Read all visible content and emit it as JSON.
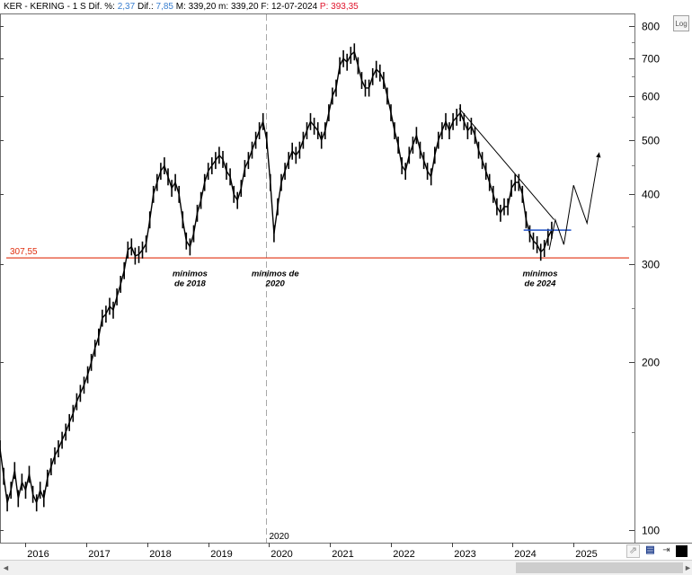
{
  "header": {
    "symbol": "KER - KERING -",
    "period": "1 S",
    "dif_pct_label": "Dif. %:",
    "dif_pct_value": "2,37",
    "dif_label": "Dif.:",
    "dif_value": "7,85",
    "max_label": "M:",
    "max_value": "339,20",
    "min_label": "m:",
    "min_value": "339,20",
    "date_label": "F:",
    "date_value": "12-07-2024",
    "price_label": "P:",
    "price_value": "393,35"
  },
  "colors": {
    "positive": "#3a7fd0",
    "price": "#e0142c",
    "support_line": "#e03010",
    "blue_level": "#1e50c8",
    "candles": "#000000"
  },
  "controls": {
    "log_label": "Log",
    "scroll_left": "◄",
    "scroll_right": "►",
    "tool_cursor_icon": "cursor-icon",
    "tool_save_icon": "save-icon",
    "tool_fit_icon": "fit-icon",
    "tool_color_icon": "color-square-icon"
  },
  "chart_data": {
    "type": "line",
    "scale": "log",
    "ylim": [
      95,
      840
    ],
    "y_ticks": [
      100,
      200,
      300,
      400,
      500,
      600,
      700,
      800
    ],
    "x_ticks": [
      {
        "label": "2016",
        "x": 2016.0
      },
      {
        "label": "2017",
        "x": 2017.0
      },
      {
        "label": "2018",
        "x": 2018.0
      },
      {
        "label": "2019",
        "x": 2019.0
      },
      {
        "label": "2020",
        "x": 2020.0
      },
      {
        "label": "2021",
        "x": 2021.0
      },
      {
        "label": "2022",
        "x": 2022.0
      },
      {
        "label": "2023",
        "x": 2023.0
      },
      {
        "label": "2024",
        "x": 2024.0
      },
      {
        "label": "2025",
        "x": 2025.0
      }
    ],
    "xlim": [
      2015.58,
      2026.0
    ],
    "vertical_marker": {
      "x": 2019.95,
      "label": "2020"
    },
    "support_level": {
      "value": 307.55,
      "label": "307,55"
    },
    "annotations": [
      {
        "lines": [
          "mínimos",
          "de 2018"
        ],
        "x": 2018.7,
        "y": 298
      },
      {
        "lines": [
          "mínimos de",
          "2020"
        ],
        "x": 2020.1,
        "y": 298
      },
      {
        "lines": [
          "mínimos",
          "de 2024"
        ],
        "x": 2024.45,
        "y": 298
      }
    ],
    "series": [
      {
        "values": [
          [
            2015.58,
            140
          ],
          [
            2015.64,
            125
          ],
          [
            2015.7,
            112
          ],
          [
            2015.76,
            118
          ],
          [
            2015.82,
            128
          ],
          [
            2015.88,
            114
          ],
          [
            2015.94,
            122
          ],
          [
            2016.0,
            118
          ],
          [
            2016.06,
            126
          ],
          [
            2016.12,
            116
          ],
          [
            2016.18,
            112
          ],
          [
            2016.24,
            118
          ],
          [
            2016.3,
            114
          ],
          [
            2016.36,
            124
          ],
          [
            2016.42,
            130
          ],
          [
            2016.48,
            136
          ],
          [
            2016.54,
            140
          ],
          [
            2016.6,
            145
          ],
          [
            2016.66,
            150
          ],
          [
            2016.72,
            156
          ],
          [
            2016.78,
            162
          ],
          [
            2016.84,
            170
          ],
          [
            2016.9,
            176
          ],
          [
            2016.96,
            182
          ],
          [
            2017.02,
            190
          ],
          [
            2017.08,
            200
          ],
          [
            2017.14,
            212
          ],
          [
            2017.2,
            222
          ],
          [
            2017.26,
            240
          ],
          [
            2017.32,
            244
          ],
          [
            2017.38,
            252
          ],
          [
            2017.44,
            248
          ],
          [
            2017.5,
            262
          ],
          [
            2017.56,
            276
          ],
          [
            2017.62,
            292
          ],
          [
            2017.68,
            318
          ],
          [
            2017.74,
            322
          ],
          [
            2017.8,
            310
          ],
          [
            2017.86,
            312
          ],
          [
            2017.92,
            318
          ],
          [
            2017.98,
            326
          ],
          [
            2018.04,
            360
          ],
          [
            2018.1,
            400
          ],
          [
            2018.16,
            420
          ],
          [
            2018.22,
            440
          ],
          [
            2018.28,
            450
          ],
          [
            2018.34,
            430
          ],
          [
            2018.4,
            410
          ],
          [
            2018.46,
            420
          ],
          [
            2018.52,
            400
          ],
          [
            2018.58,
            360
          ],
          [
            2018.64,
            330
          ],
          [
            2018.7,
            322
          ],
          [
            2018.76,
            340
          ],
          [
            2018.82,
            370
          ],
          [
            2018.88,
            390
          ],
          [
            2018.94,
            420
          ],
          [
            2019.0,
            440
          ],
          [
            2019.06,
            450
          ],
          [
            2019.12,
            460
          ],
          [
            2019.18,
            470
          ],
          [
            2019.24,
            462
          ],
          [
            2019.3,
            440
          ],
          [
            2019.36,
            430
          ],
          [
            2019.42,
            400
          ],
          [
            2019.48,
            390
          ],
          [
            2019.54,
            410
          ],
          [
            2019.6,
            445
          ],
          [
            2019.66,
            460
          ],
          [
            2019.72,
            480
          ],
          [
            2019.78,
            500
          ],
          [
            2019.84,
            520
          ],
          [
            2019.9,
            540
          ],
          [
            2019.96,
            500
          ],
          [
            2020.02,
            420
          ],
          [
            2020.08,
            340
          ],
          [
            2020.14,
            380
          ],
          [
            2020.2,
            420
          ],
          [
            2020.26,
            440
          ],
          [
            2020.32,
            460
          ],
          [
            2020.38,
            478
          ],
          [
            2020.44,
            470
          ],
          [
            2020.5,
            480
          ],
          [
            2020.56,
            500
          ],
          [
            2020.62,
            520
          ],
          [
            2020.68,
            540
          ],
          [
            2020.74,
            530
          ],
          [
            2020.8,
            520
          ],
          [
            2020.86,
            500
          ],
          [
            2020.92,
            520
          ],
          [
            2020.98,
            560
          ],
          [
            2021.04,
            600
          ],
          [
            2021.1,
            620
          ],
          [
            2021.16,
            680
          ],
          [
            2021.22,
            700
          ],
          [
            2021.28,
            690
          ],
          [
            2021.34,
            710
          ],
          [
            2021.4,
            720
          ],
          [
            2021.46,
            680
          ],
          [
            2021.52,
            640
          ],
          [
            2021.58,
            620
          ],
          [
            2021.64,
            620
          ],
          [
            2021.7,
            650
          ],
          [
            2021.76,
            670
          ],
          [
            2021.82,
            660
          ],
          [
            2021.88,
            640
          ],
          [
            2021.94,
            600
          ],
          [
            2022.0,
            560
          ],
          [
            2022.06,
            520
          ],
          [
            2022.12,
            490
          ],
          [
            2022.18,
            450
          ],
          [
            2022.24,
            440
          ],
          [
            2022.3,
            470
          ],
          [
            2022.36,
            490
          ],
          [
            2022.42,
            510
          ],
          [
            2022.48,
            480
          ],
          [
            2022.54,
            460
          ],
          [
            2022.6,
            440
          ],
          [
            2022.66,
            430
          ],
          [
            2022.72,
            470
          ],
          [
            2022.78,
            500
          ],
          [
            2022.84,
            520
          ],
          [
            2022.9,
            540
          ],
          [
            2022.96,
            520
          ],
          [
            2023.02,
            540
          ],
          [
            2023.08,
            550
          ],
          [
            2023.14,
            560
          ],
          [
            2023.2,
            540
          ],
          [
            2023.26,
            520
          ],
          [
            2023.32,
            530
          ],
          [
            2023.38,
            510
          ],
          [
            2023.44,
            480
          ],
          [
            2023.5,
            460
          ],
          [
            2023.56,
            440
          ],
          [
            2023.62,
            420
          ],
          [
            2023.68,
            400
          ],
          [
            2023.74,
            380
          ],
          [
            2023.8,
            370
          ],
          [
            2023.86,
            380
          ],
          [
            2023.92,
            380
          ],
          [
            2023.98,
            410
          ],
          [
            2024.04,
            420
          ],
          [
            2024.1,
            420
          ],
          [
            2024.16,
            400
          ],
          [
            2024.22,
            360
          ],
          [
            2024.28,
            340
          ],
          [
            2024.34,
            330
          ],
          [
            2024.4,
            325
          ],
          [
            2024.46,
            315
          ],
          [
            2024.52,
            320
          ],
          [
            2024.58,
            335
          ],
          [
            2024.64,
            345
          ]
        ]
      }
    ],
    "blue_level": {
      "value": 345,
      "x_from": 2024.18,
      "x_to": 2024.96
    },
    "trendline": [
      [
        2023.12,
        570
      ],
      [
        2024.68,
        360
      ]
    ],
    "projection": [
      [
        2024.6,
        318
      ],
      [
        2024.7,
        360
      ],
      [
        2024.84,
        325
      ],
      [
        2025.0,
        415
      ],
      [
        2025.22,
        355
      ],
      [
        2025.42,
        475
      ]
    ]
  }
}
